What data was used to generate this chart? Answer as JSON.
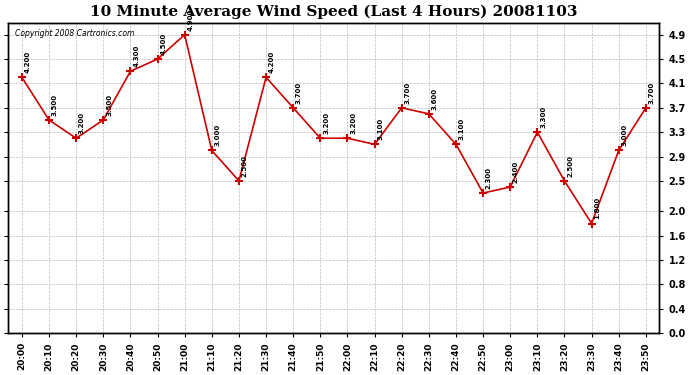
{
  "title": "10 Minute Average Wind Speed (Last 4 Hours) 20081103",
  "copyright_text": "Copyright 2008 Cartronics.com",
  "x_labels": [
    "20:00",
    "20:10",
    "20:20",
    "20:30",
    "20:40",
    "20:50",
    "21:00",
    "21:10",
    "21:20",
    "21:30",
    "21:40",
    "21:50",
    "22:00",
    "22:10",
    "22:20",
    "22:30",
    "22:40",
    "22:50",
    "23:00",
    "23:10",
    "23:20",
    "23:30",
    "23:40",
    "23:50"
  ],
  "y_values": [
    4.2,
    3.5,
    3.2,
    3.5,
    4.3,
    4.5,
    4.9,
    3.0,
    2.5,
    4.2,
    3.7,
    3.2,
    3.2,
    3.1,
    3.7,
    3.6,
    3.1,
    2.3,
    2.4,
    3.3,
    2.5,
    1.8,
    3.0,
    3.7
  ],
  "line_color": "#cc0000",
  "bg_color": "#ffffff",
  "grid_color": "#bbbbbb",
  "yticks_left": [
    0.0,
    0.4,
    0.8,
    1.2,
    1.6,
    2.0,
    2.5,
    2.9,
    3.3,
    3.7,
    4.1,
    4.5,
    4.9
  ],
  "yticks_right": [
    0.0,
    0.4,
    0.8,
    1.2,
    1.6,
    2.0,
    2.5,
    2.9,
    3.3,
    3.7,
    4.1,
    4.5,
    4.9
  ],
  "ylim": [
    0.0,
    5.1
  ],
  "title_fontsize": 11
}
